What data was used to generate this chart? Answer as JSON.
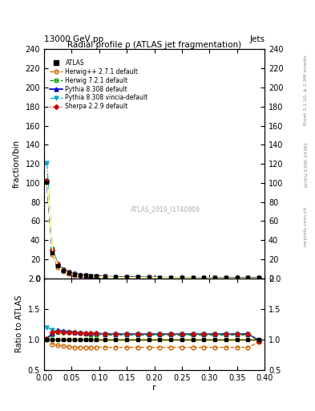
{
  "title_main": "Radial profile ρ (ATLAS jet fragmentation)",
  "header_left": "13000 GeV pp",
  "header_right": "Jets",
  "ylabel_main": "fraction/bin",
  "ylabel_ratio": "Ratio to ATLAS",
  "xlabel": "r",
  "watermark": "ATLAS_2019_I1740909",
  "right_label_top": "Rivet 3.1.10, ≥ 2.9M events",
  "right_label_bottom": "[arXiv:1306.3436]",
  "right_label_site": "mcplots.cern.ch",
  "ylim_main": [
    0,
    240
  ],
  "ylim_ratio": [
    0.5,
    2.0
  ],
  "yticks_main": [
    0,
    20,
    40,
    60,
    80,
    100,
    120,
    140,
    160,
    180,
    200,
    220,
    240
  ],
  "yticks_ratio": [
    0.5,
    1.0,
    1.5,
    2.0
  ],
  "r_values": [
    0.005,
    0.015,
    0.025,
    0.035,
    0.045,
    0.055,
    0.065,
    0.075,
    0.085,
    0.095,
    0.11,
    0.13,
    0.15,
    0.17,
    0.19,
    0.21,
    0.23,
    0.25,
    0.27,
    0.29,
    0.31,
    0.33,
    0.35,
    0.37,
    0.39
  ],
  "atlas_values": [
    101,
    27,
    13,
    8,
    5.5,
    4.0,
    3.2,
    2.7,
    2.3,
    2.0,
    1.7,
    1.4,
    1.2,
    1.05,
    0.95,
    0.85,
    0.78,
    0.72,
    0.67,
    0.63,
    0.59,
    0.56,
    0.53,
    0.51,
    0.49
  ],
  "atlas_errors": [
    2.0,
    0.5,
    0.3,
    0.2,
    0.15,
    0.1,
    0.08,
    0.07,
    0.06,
    0.05,
    0.04,
    0.03,
    0.025,
    0.02,
    0.018,
    0.016,
    0.014,
    0.013,
    0.012,
    0.011,
    0.01,
    0.01,
    0.009,
    0.009,
    0.008
  ],
  "herwig271_ratio": [
    1.0,
    0.92,
    0.9,
    0.89,
    0.88,
    0.87,
    0.87,
    0.87,
    0.87,
    0.87,
    0.87,
    0.87,
    0.87,
    0.87,
    0.87,
    0.87,
    0.87,
    0.87,
    0.87,
    0.87,
    0.87,
    0.87,
    0.87,
    0.87,
    0.96
  ],
  "herwig721_ratio": [
    1.01,
    1.08,
    1.12,
    1.12,
    1.12,
    1.11,
    1.1,
    1.09,
    1.08,
    1.08,
    1.07,
    1.07,
    1.07,
    1.07,
    1.07,
    1.07,
    1.07,
    1.07,
    1.07,
    1.07,
    1.07,
    1.07,
    1.07,
    1.07,
    1.0
  ],
  "pythia8308_ratio": [
    1.01,
    1.1,
    1.15,
    1.14,
    1.13,
    1.12,
    1.11,
    1.1,
    1.1,
    1.1,
    1.09,
    1.09,
    1.09,
    1.09,
    1.09,
    1.09,
    1.09,
    1.09,
    1.09,
    1.09,
    1.09,
    1.09,
    1.09,
    1.09,
    0.98
  ],
  "pythia8308v_ratio": [
    1.2,
    1.15,
    1.13,
    1.12,
    1.11,
    1.1,
    1.1,
    1.09,
    1.09,
    1.09,
    1.09,
    1.09,
    1.09,
    1.09,
    1.09,
    1.09,
    1.09,
    1.09,
    1.09,
    1.09,
    1.09,
    1.09,
    1.09,
    1.09,
    0.98
  ],
  "sherpa229_ratio": [
    1.01,
    1.12,
    1.13,
    1.12,
    1.11,
    1.11,
    1.1,
    1.1,
    1.1,
    1.1,
    1.09,
    1.09,
    1.09,
    1.09,
    1.09,
    1.09,
    1.09,
    1.09,
    1.09,
    1.09,
    1.09,
    1.09,
    1.09,
    1.09,
    0.97
  ],
  "color_atlas": "#000000",
  "color_herwig271": "#cc6600",
  "color_herwig721": "#009900",
  "color_pythia8308": "#0000cc",
  "color_pythia8308v": "#00aacc",
  "color_sherpa229": "#cc0000",
  "bg_color": "#ffffff",
  "ratio_band_color": "#ffff99",
  "xlim": [
    0.0,
    0.4
  ]
}
